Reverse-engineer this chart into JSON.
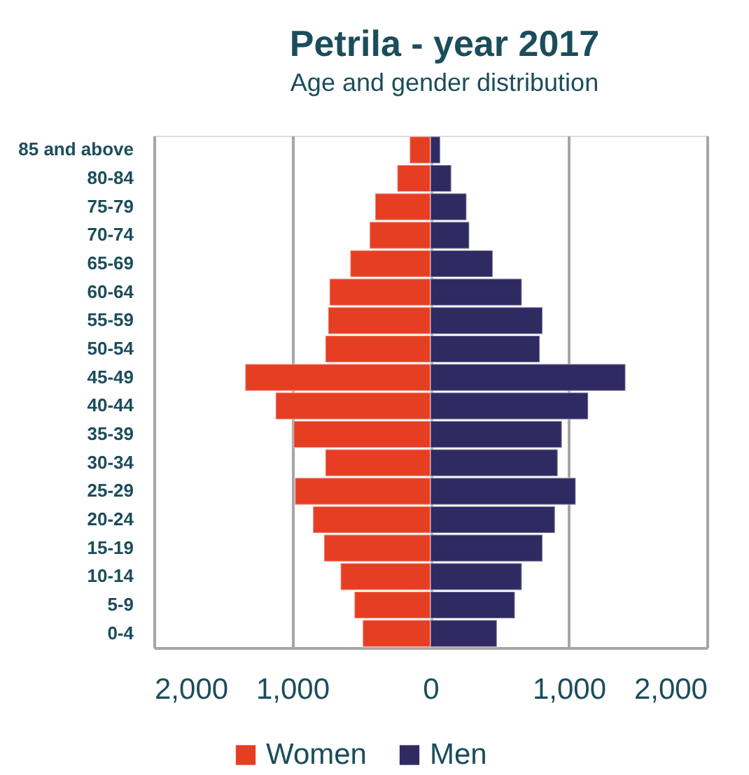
{
  "chart_data": {
    "type": "bar",
    "orientation": "horizontal",
    "stacked": true,
    "title": "Petrila - year 2017",
    "subtitle": "Age and gender distribution",
    "categories": [
      "85 and above",
      "80-84",
      "75-79",
      "70-74",
      "65-69",
      "60-64",
      "55-59",
      "50-54",
      "45-49",
      "40-44",
      "35-39",
      "30-34",
      "25-29",
      "20-24",
      "15-19",
      "10-14",
      "5-9",
      "0-4"
    ],
    "series": [
      {
        "name": "Women",
        "color": "#e63e23",
        "values": [
          -150,
          -240,
          -400,
          -440,
          -580,
          -730,
          -740,
          -760,
          -1340,
          -1120,
          -990,
          -760,
          -980,
          -850,
          -770,
          -650,
          -550,
          -490
        ]
      },
      {
        "name": "Men",
        "color": "#302a62",
        "values": [
          70,
          150,
          260,
          280,
          450,
          660,
          810,
          790,
          1410,
          1140,
          950,
          920,
          1050,
          900,
          810,
          660,
          610,
          480
        ]
      }
    ],
    "xlim": [
      -2000,
      2000
    ],
    "xticks": [
      {
        "value": -2000,
        "label": "2,000"
      },
      {
        "value": -1000,
        "label": "1,000"
      },
      0,
      {
        "value": 1000,
        "label": "1,000"
      },
      {
        "value": 2000,
        "label": "2,000"
      }
    ],
    "grid": "x",
    "legend": "bottom"
  }
}
